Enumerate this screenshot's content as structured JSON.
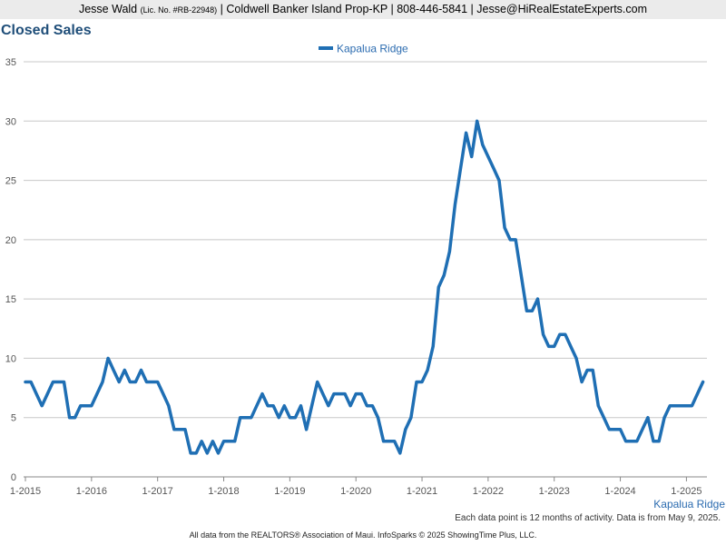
{
  "header": {
    "name": "Jesse Wald",
    "license": "(Lic. No. #RB-22948)",
    "rest": "| Coldwell Banker Island Prop-KP | 808-446-5841 | Jesse@HiRealEstateExperts.com"
  },
  "chart_data": {
    "type": "line",
    "title": "Closed Sales",
    "xlabel": "",
    "ylabel": "",
    "ylim": [
      0,
      35
    ],
    "yticks": [
      0,
      5,
      10,
      15,
      20,
      25,
      30,
      35
    ],
    "grid": true,
    "legend_position": "top-center",
    "xtick_labels": [
      "1-2015",
      "1-2016",
      "1-2017",
      "1-2018",
      "1-2019",
      "1-2020",
      "1-2021",
      "1-2022",
      "1-2023",
      "1-2024",
      "1-2025"
    ],
    "x_start": "1-2015",
    "x_end": "4-2025",
    "x_interval": "month",
    "series": [
      {
        "name": "Kapalua Ridge",
        "color": "#1f6fb4",
        "values": [
          8,
          8,
          7,
          6,
          7,
          8,
          8,
          8,
          5,
          5,
          6,
          6,
          6,
          7,
          8,
          10,
          9,
          8,
          9,
          8,
          8,
          9,
          8,
          8,
          8,
          7,
          6,
          4,
          4,
          4,
          2,
          2,
          3,
          2,
          3,
          2,
          3,
          3,
          3,
          5,
          5,
          5,
          6,
          7,
          6,
          6,
          5,
          6,
          5,
          5,
          6,
          4,
          6,
          8,
          7,
          6,
          7,
          7,
          7,
          6,
          7,
          7,
          6,
          6,
          5,
          3,
          3,
          3,
          2,
          4,
          5,
          8,
          8,
          9,
          11,
          16,
          17,
          19,
          23,
          26,
          29,
          27,
          30,
          28,
          27,
          26,
          25,
          21,
          20,
          20,
          17,
          14,
          14,
          15,
          12,
          11,
          11,
          12,
          12,
          11,
          10,
          8,
          9,
          9,
          6,
          5,
          4,
          4,
          4,
          3,
          3,
          3,
          4,
          5,
          3,
          3,
          5,
          6,
          6,
          6,
          6,
          6,
          7,
          8
        ]
      }
    ]
  },
  "footnote": "Each data point is 12 months of activity. Data is from May 9, 2025.",
  "footer": "All data from the REALTORS® Association of Maui. InfoSparks © 2025 ShowingTime Plus, LLC."
}
